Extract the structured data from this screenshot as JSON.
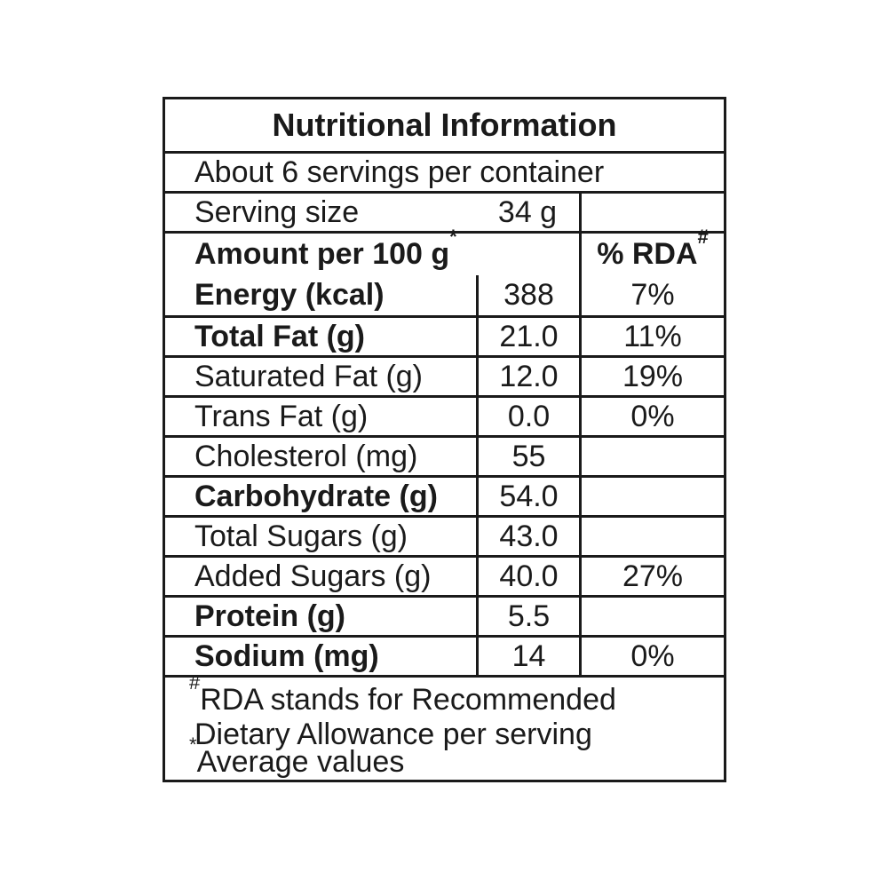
{
  "colors": {
    "ink": "#1a1a1a",
    "background": "#ffffff"
  },
  "label": {
    "title": "Nutritional Information",
    "servings_line": "About 6 servings per container",
    "serving_size": {
      "name": "Serving size",
      "value": "34 g"
    },
    "headers": {
      "amount": "Amount per 100 g",
      "amount_sup": "*",
      "rda": "% RDA",
      "rda_sup": "#"
    },
    "rows": [
      {
        "name": "Energy (kcal)",
        "bold": true,
        "value": "388",
        "rda": "7%"
      },
      {
        "name": "Total Fat (g)",
        "bold": true,
        "value": "21.0",
        "rda": "11%"
      },
      {
        "name": "Saturated Fat (g)",
        "bold": false,
        "value": "12.0",
        "rda": "19%"
      },
      {
        "name": "Trans Fat (g)",
        "bold": false,
        "value": "0.0",
        "rda": "0%"
      },
      {
        "name": "Cholesterol (mg)",
        "bold": false,
        "value": "55",
        "rda": ""
      },
      {
        "name": "Carbohydrate (g)",
        "bold": true,
        "value": "54.0",
        "rda": ""
      },
      {
        "name": "Total Sugars (g)",
        "bold": false,
        "value": "43.0",
        "rda": ""
      },
      {
        "name": "Added Sugars (g)",
        "bold": false,
        "value": "40.0",
        "rda": "27%"
      },
      {
        "name": "Protein (g)",
        "bold": true,
        "value": "5.5",
        "rda": ""
      },
      {
        "name": "Sodium (mg)",
        "bold": true,
        "value": "14",
        "rda": "0%"
      }
    ],
    "footnotes": [
      {
        "sup": "#",
        "text": "RDA stands for Recommended",
        "indent": false
      },
      {
        "sup": "",
        "text": "Dietary Allowance per serving",
        "indent": true
      },
      {
        "sup": "*",
        "text": "Average values",
        "indent": false
      }
    ]
  }
}
